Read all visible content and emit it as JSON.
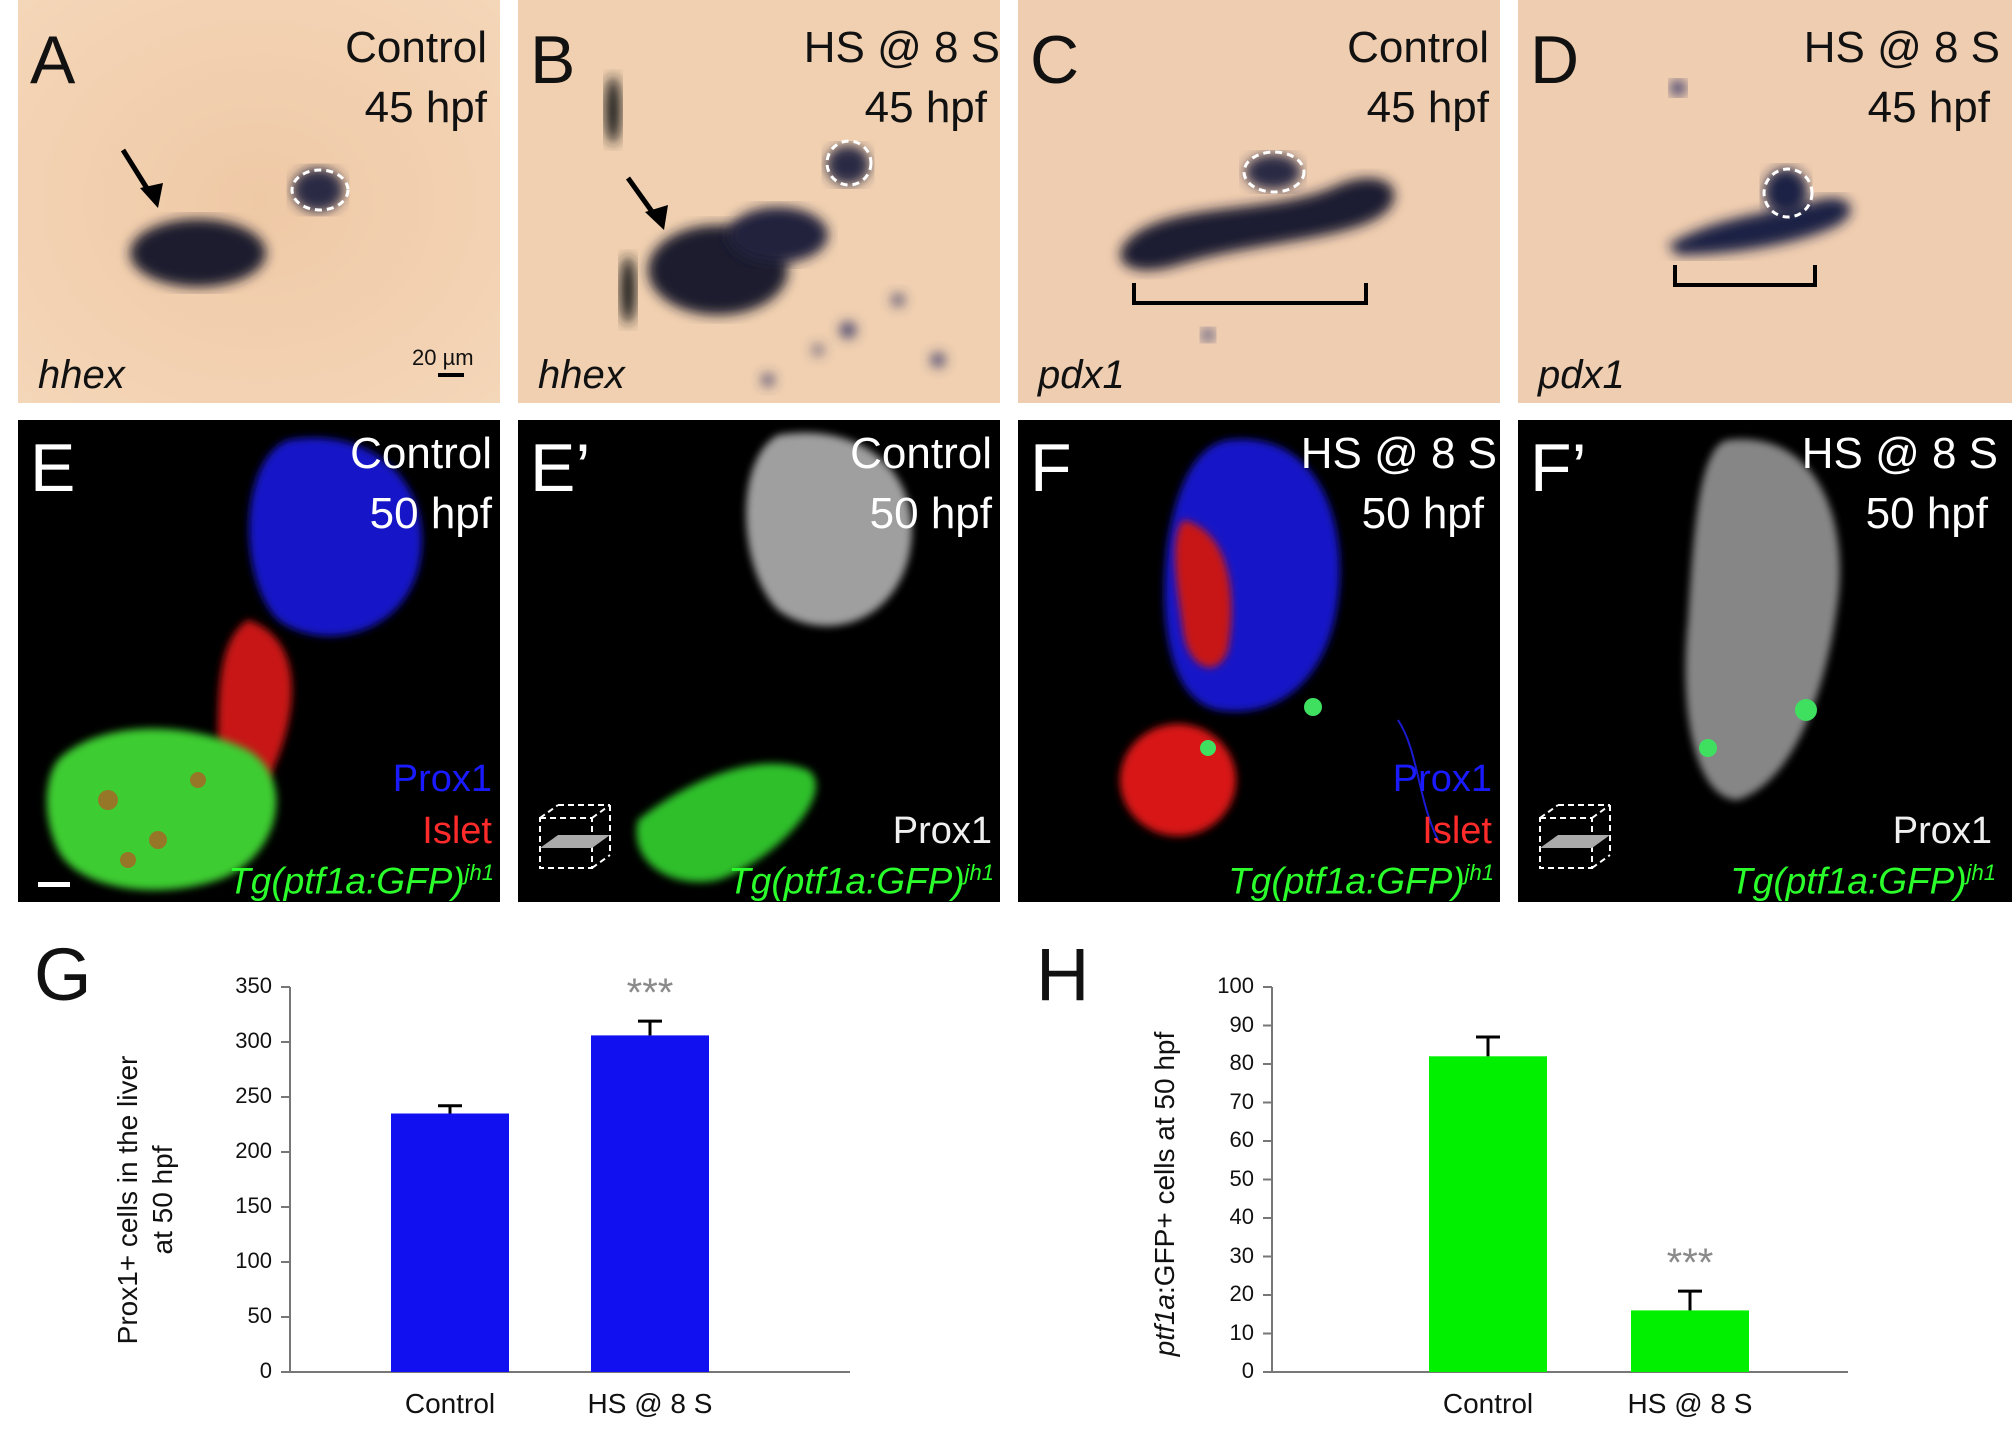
{
  "panels_top": [
    {
      "letter": "A",
      "condition": [
        "Control",
        "45 hpf"
      ],
      "gene": "hhex",
      "scale_label": "20 µm"
    },
    {
      "letter": "B",
      "condition": [
        "HS @ 8 S",
        "45 hpf"
      ],
      "gene": "hhex"
    },
    {
      "letter": "C",
      "condition": [
        "Control",
        "45 hpf"
      ],
      "gene": "pdx1"
    },
    {
      "letter": "D",
      "condition": [
        "HS @ 8 S",
        "45 hpf"
      ],
      "gene": "pdx1"
    }
  ],
  "panels_mid": [
    {
      "letter": "E",
      "condition": [
        "Control",
        "50 hpf"
      ],
      "stains": [
        "Prox1",
        "Islet"
      ],
      "transgene": "Tg(ptf1a:GFP)",
      "transgene_sup": "jh1"
    },
    {
      "letter": "E’",
      "condition": [
        "Control",
        "50 hpf"
      ],
      "stains": [
        "Prox1"
      ],
      "transgene": "Tg(ptf1a:GFP)",
      "transgene_sup": "jh1"
    },
    {
      "letter": "F",
      "condition": [
        "HS @ 8 S",
        "50 hpf"
      ],
      "stains": [
        "Prox1",
        "Islet"
      ],
      "transgene": "Tg(ptf1a:GFP)",
      "transgene_sup": "jh1"
    },
    {
      "letter": "F’",
      "condition": [
        "HS @ 8 S",
        "50 hpf"
      ],
      "stains": [
        "Prox1"
      ],
      "transgene": "Tg(ptf1a:GFP)",
      "transgene_sup": "jh1"
    }
  ],
  "chart_data": [
    {
      "panel": "G",
      "type": "bar",
      "categories": [
        "Control",
        "HS @ 8 S"
      ],
      "values": [
        235,
        306
      ],
      "errors": [
        7,
        13
      ],
      "ylabel_lines": [
        "Prox1+ cells in the liver",
        "at 50 hpf"
      ],
      "ylim": [
        0,
        350
      ],
      "yticks": [
        0,
        50,
        100,
        150,
        200,
        250,
        300,
        350
      ],
      "significance": [
        "",
        "***"
      ],
      "color": "#1010f0"
    },
    {
      "panel": "H",
      "type": "bar",
      "categories": [
        "Control",
        "HS @ 8 S"
      ],
      "values": [
        82,
        16
      ],
      "errors": [
        5,
        5
      ],
      "ylabel_italic": "ptf1a",
      "ylabel_rest": ":GFP+ cells at 50 hpf",
      "ylim": [
        0,
        100
      ],
      "yticks": [
        0,
        10,
        20,
        30,
        40,
        50,
        60,
        70,
        80,
        90,
        100
      ],
      "significance": [
        "",
        "***"
      ],
      "color": "#00f000"
    }
  ]
}
